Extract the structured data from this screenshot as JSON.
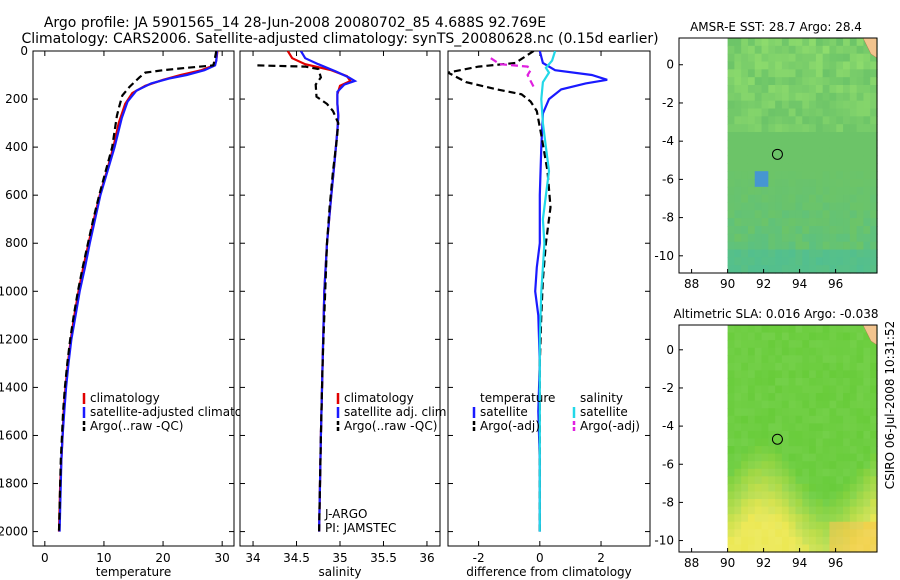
{
  "title": {
    "line1": "Argo profile: JA 5901565_14 28-Jun-2008 20080702_85 4.688S 92.769E",
    "line2": "Climatology: CARS2006. Satellite-adjusted climatology: synTS_20080628.nc (0.15d earlier)"
  },
  "colors": {
    "climatology": "#e00000",
    "satellite": "#1a1aff",
    "argo": "#000000",
    "salinity_satellite": "#22d8e8",
    "salinity_argo": "#e020e0"
  },
  "depth_axis": {
    "ylim": [
      0,
      2060
    ],
    "ticks": [
      0,
      200,
      400,
      600,
      800,
      1000,
      1200,
      1400,
      1600,
      1800,
      2000
    ]
  },
  "chart_data": [
    {
      "id": "temperature",
      "type": "line",
      "xlabel": "temperature",
      "xlim": [
        -2,
        32
      ],
      "xticks": [
        0,
        10,
        20,
        30
      ],
      "xtick_labels": [
        "0",
        "10",
        "20",
        "30"
      ],
      "legend": [
        "climatology",
        "satellite-adjusted climatology",
        "Argo(..raw -QC)"
      ],
      "series": [
        {
          "name": "climatology",
          "style": "solid",
          "color": "#e00000",
          "points": [
            [
              29.2,
              0
            ],
            [
              29.0,
              40
            ],
            [
              28.6,
              60
            ],
            [
              26.5,
              80
            ],
            [
              23,
              100
            ],
            [
              20,
              120
            ],
            [
              17,
              145
            ],
            [
              14.8,
              175
            ],
            [
              13.6,
              220
            ],
            [
              12.5,
              300
            ],
            [
              11.6,
              400
            ],
            [
              10.5,
              500
            ],
            [
              9.3,
              600
            ],
            [
              8.3,
              700
            ],
            [
              7.4,
              800
            ],
            [
              6.5,
              900
            ],
            [
              5.7,
              1000
            ],
            [
              5.0,
              1100
            ],
            [
              4.4,
              1200
            ],
            [
              3.9,
              1300
            ],
            [
              3.5,
              1400
            ],
            [
              3.2,
              1500
            ],
            [
              3.0,
              1600
            ],
            [
              2.8,
              1700
            ],
            [
              2.6,
              1800
            ],
            [
              2.5,
              1900
            ],
            [
              2.4,
              2000
            ]
          ]
        },
        {
          "name": "satellite-adjusted climatology",
          "style": "solid",
          "color": "#1a1aff",
          "points": [
            [
              29.1,
              0
            ],
            [
              29.0,
              40
            ],
            [
              28.8,
              60
            ],
            [
              27,
              80
            ],
            [
              24,
              100
            ],
            [
              21,
              115
            ],
            [
              18,
              135
            ],
            [
              15.5,
              165
            ],
            [
              14,
              210
            ],
            [
              13,
              280
            ],
            [
              11.8,
              400
            ],
            [
              10.6,
              500
            ],
            [
              9.4,
              600
            ],
            [
              8.5,
              700
            ],
            [
              7.6,
              800
            ],
            [
              6.8,
              900
            ],
            [
              5.9,
              1000
            ],
            [
              5.2,
              1100
            ],
            [
              4.5,
              1200
            ],
            [
              4.0,
              1300
            ],
            [
              3.6,
              1400
            ],
            [
              3.3,
              1500
            ],
            [
              3.0,
              1600
            ],
            [
              2.8,
              1700
            ],
            [
              2.7,
              1800
            ],
            [
              2.6,
              1900
            ],
            [
              2.5,
              2000
            ]
          ]
        },
        {
          "name": "Argo(..raw -QC)",
          "style": "dashed",
          "color": "#000000",
          "points": [
            [
              29.0,
              0
            ],
            [
              28.7,
              40
            ],
            [
              28.5,
              60
            ],
            [
              24,
              70
            ],
            [
              20,
              80
            ],
            [
              17,
              90
            ],
            [
              16,
              110
            ],
            [
              14.3,
              150
            ],
            [
              13.1,
              185
            ],
            [
              12.6,
              230
            ],
            [
              12.2,
              270
            ],
            [
              11.4,
              400
            ],
            [
              10.3,
              500
            ],
            [
              9.2,
              600
            ],
            [
              8.2,
              700
            ],
            [
              7.3,
              800
            ],
            [
              6.4,
              900
            ],
            [
              5.6,
              1000
            ],
            [
              4.9,
              1100
            ],
            [
              4.3,
              1200
            ],
            [
              3.8,
              1300
            ],
            [
              3.4,
              1400
            ],
            [
              3.1,
              1500
            ],
            [
              2.9,
              1600
            ],
            [
              2.7,
              1700
            ],
            [
              2.6,
              1800
            ],
            [
              2.5,
              1900
            ],
            [
              2.4,
              2000
            ]
          ]
        }
      ]
    },
    {
      "id": "salinity",
      "type": "line",
      "xlabel": "salinity",
      "xlim": [
        33.85,
        36.15
      ],
      "xticks": [
        34,
        34.5,
        35,
        35.5,
        36
      ],
      "xtick_labels": [
        "34",
        "34.5",
        "35",
        "35.5",
        "36"
      ],
      "legend": [
        "climatology",
        "satellite adj. clim.",
        "Argo(..raw -QC)"
      ],
      "annotations": [
        "J-ARGO",
        "PI: JAMSTEC"
      ],
      "series": [
        {
          "name": "climatology",
          "style": "solid",
          "color": "#e00000",
          "points": [
            [
              34.4,
              0
            ],
            [
              34.45,
              30
            ],
            [
              34.6,
              55
            ],
            [
              34.9,
              80
            ],
            [
              35.08,
              105
            ],
            [
              35.12,
              125
            ],
            [
              35.0,
              145
            ],
            [
              34.97,
              180
            ],
            [
              34.97,
              220
            ],
            [
              34.98,
              270
            ],
            [
              34.97,
              330
            ],
            [
              34.94,
              450
            ],
            [
              34.9,
              600
            ],
            [
              34.85,
              800
            ],
            [
              34.82,
              1000
            ],
            [
              34.8,
              1300
            ],
            [
              34.78,
              1600
            ],
            [
              34.76,
              2000
            ]
          ]
        },
        {
          "name": "satellite adj. clim.",
          "style": "solid",
          "color": "#1a1aff",
          "points": [
            [
              34.55,
              0
            ],
            [
              34.6,
              30
            ],
            [
              34.75,
              55
            ],
            [
              34.95,
              85
            ],
            [
              35.1,
              110
            ],
            [
              35.17,
              125
            ],
            [
              35.05,
              140
            ],
            [
              34.97,
              170
            ],
            [
              34.97,
              220
            ],
            [
              34.98,
              270
            ],
            [
              34.97,
              330
            ],
            [
              34.94,
              450
            ],
            [
              34.9,
              600
            ],
            [
              34.85,
              800
            ],
            [
              34.82,
              1000
            ],
            [
              34.8,
              1300
            ],
            [
              34.78,
              1600
            ],
            [
              34.76,
              2000
            ]
          ]
        },
        {
          "name": "Argo(..raw -QC)",
          "style": "dashed",
          "color": "#000000",
          "points": [
            [
              34.05,
              60
            ],
            [
              34.6,
              65
            ],
            [
              34.75,
              75
            ],
            [
              34.78,
              110
            ],
            [
              34.72,
              140
            ],
            [
              34.73,
              190
            ],
            [
              34.85,
              220
            ],
            [
              34.92,
              250
            ],
            [
              34.98,
              300
            ],
            [
              34.96,
              380
            ],
            [
              34.92,
              500
            ],
            [
              34.88,
              650
            ],
            [
              34.85,
              800
            ],
            [
              34.83,
              1000
            ],
            [
              34.8,
              1300
            ],
            [
              34.78,
              1600
            ],
            [
              34.76,
              2000
            ]
          ]
        }
      ]
    },
    {
      "id": "difference",
      "type": "line",
      "xlabel": "difference from climatology",
      "xlim": [
        -3,
        3.6
      ],
      "xticks": [
        -2,
        0,
        2
      ],
      "xtick_labels": [
        "-2",
        "0",
        "2"
      ],
      "legend": [
        "temperature",
        "satellite",
        "Argo(-adj)",
        "salinity",
        "satellite",
        "Argo(-adj)"
      ],
      "series": [
        {
          "name": "temperature satellite",
          "style": "solid",
          "color": "#1a1aff",
          "points": [
            [
              0,
              0
            ],
            [
              0.1,
              50
            ],
            [
              0.5,
              80
            ],
            [
              1.7,
              100
            ],
            [
              2.2,
              120
            ],
            [
              1.5,
              135
            ],
            [
              0.7,
              160
            ],
            [
              0.3,
              200
            ],
            [
              0.1,
              260
            ],
            [
              0.05,
              400
            ],
            [
              0.0,
              600
            ],
            [
              0.0,
              800
            ],
            [
              -0.1,
              900
            ],
            [
              -0.15,
              1000
            ],
            [
              -0.05,
              1100
            ],
            [
              0.0,
              1300
            ],
            [
              -0.05,
              1500
            ],
            [
              0.0,
              1700
            ],
            [
              0.0,
              2000
            ]
          ]
        },
        {
          "name": "temperature Argo(-adj)",
          "style": "dashed",
          "color": "#000000",
          "points": [
            [
              -0.2,
              0
            ],
            [
              -0.8,
              50
            ],
            [
              -2.0,
              65
            ],
            [
              -3.0,
              90
            ],
            [
              -2.4,
              130
            ],
            [
              -1.4,
              160
            ],
            [
              -0.6,
              180
            ],
            [
              -0.3,
              210
            ],
            [
              -0.1,
              250
            ],
            [
              0.05,
              350
            ],
            [
              0.25,
              500
            ],
            [
              0.35,
              650
            ],
            [
              0.2,
              800
            ],
            [
              0.1,
              950
            ],
            [
              0.05,
              1100
            ],
            [
              0.0,
              1300
            ],
            [
              0.0,
              1600
            ],
            [
              0.0,
              2000
            ]
          ]
        },
        {
          "name": "salinity satellite",
          "style": "solid",
          "color": "#22d8e8",
          "points": [
            [
              0.5,
              0
            ],
            [
              0.4,
              40
            ],
            [
              0.2,
              70
            ],
            [
              0.3,
              90
            ],
            [
              0.1,
              130
            ],
            [
              0.05,
              200
            ],
            [
              0.1,
              300
            ],
            [
              0.2,
              400
            ],
            [
              0.3,
              500
            ],
            [
              0.2,
              600
            ],
            [
              0.1,
              700
            ],
            [
              0.15,
              800
            ],
            [
              0.1,
              900
            ],
            [
              0.05,
              1000
            ],
            [
              0.0,
              1200
            ],
            [
              0.0,
              1500
            ],
            [
              0.0,
              2000
            ]
          ]
        },
        {
          "name": "salinity Argo(-adj)",
          "style": "dashed",
          "color": "#e020e0",
          "points": [
            [
              -1.6,
              30
            ],
            [
              -1.3,
              55
            ],
            [
              -0.4,
              65
            ],
            [
              -0.3,
              80
            ],
            [
              -0.4,
              100
            ],
            [
              -0.2,
              150
            ]
          ]
        }
      ]
    },
    {
      "id": "sst-map",
      "type": "heatmap",
      "title": "AMSR-E SST: 28.7 Argo: 28.4",
      "xlim": [
        87.3,
        98.3
      ],
      "ylim": [
        -10.9,
        1.4
      ],
      "xticks": [
        88,
        90,
        92,
        94,
        96
      ],
      "yticks": [
        -10,
        -8,
        -6,
        -4,
        -2,
        0
      ],
      "data_xlim": [
        90,
        98.3
      ],
      "argo_position": [
        92.769,
        -4.688
      ]
    },
    {
      "id": "sla-map",
      "type": "heatmap",
      "title": "Altimetric SLA: 0.016 Argo: -0.038",
      "xlim": [
        87.3,
        98.3
      ],
      "ylim": [
        -10.6,
        1.3
      ],
      "xticks": [
        88,
        90,
        92,
        94,
        96
      ],
      "yticks": [
        -10,
        -8,
        -6,
        -4,
        -2,
        0
      ],
      "data_xlim": [
        90,
        98.3
      ],
      "argo_position": [
        92.769,
        -4.688
      ]
    }
  ],
  "footer": {
    "credit": "CSIRO 06-Jul-2008 10:31:52"
  }
}
